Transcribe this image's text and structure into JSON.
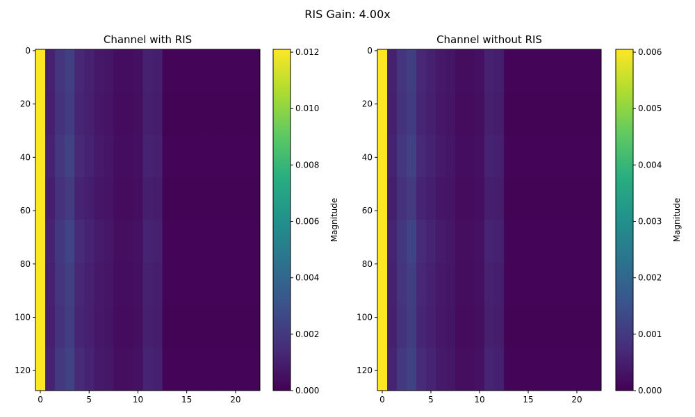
{
  "figure_title": "RIS Gain: 4.00x",
  "chart_data": [
    {
      "type": "heatmap",
      "title": "Channel with RIS",
      "xlabel": "",
      "ylabel": "",
      "x_range": [
        -0.5,
        22.5
      ],
      "y_range": [
        127.5,
        -0.5
      ],
      "x_ticks": [
        0,
        5,
        10,
        15,
        20
      ],
      "y_ticks": [
        0,
        20,
        40,
        60,
        80,
        100,
        120
      ],
      "rows": 128,
      "cols": 23,
      "colorbar": {
        "label": "Magnitude",
        "range": [
          0,
          0.0121
        ],
        "ticks": [
          "0.000",
          "0.002",
          "0.004",
          "0.006",
          "0.008",
          "0.010",
          "0.012"
        ],
        "tick_values": [
          0,
          0.002,
          0.004,
          0.006,
          0.008,
          0.01,
          0.012
        ],
        "colormap": "viridis"
      },
      "column_profile": [
        0.0121,
        0.0011,
        0.0018,
        0.0022,
        0.0013,
        0.0011,
        0.0008,
        0.0007,
        0.0004,
        0.0004,
        0.0005,
        0.0011,
        0.001,
        0.0001,
        0.0001,
        0.0001,
        0.0001,
        0.0001,
        0.0001,
        0.0001,
        0.0001,
        0.0001,
        0.0001
      ],
      "row_block_size": 16,
      "row_block_modulation": [
        1.0,
        0.95,
        1.05,
        0.92,
        1.1,
        1.0,
        0.96,
        1.08
      ]
    },
    {
      "type": "heatmap",
      "title": "Channel without RIS",
      "xlabel": "",
      "ylabel": "",
      "x_range": [
        -0.5,
        22.5
      ],
      "y_range": [
        127.5,
        -0.5
      ],
      "x_ticks": [
        0,
        5,
        10,
        15,
        20
      ],
      "y_ticks": [
        0,
        20,
        40,
        60,
        80,
        100,
        120
      ],
      "rows": 128,
      "cols": 23,
      "colorbar": {
        "label": "Magnitude",
        "range": [
          0,
          0.00605
        ],
        "ticks": [
          "0.000",
          "0.001",
          "0.002",
          "0.003",
          "0.004",
          "0.005",
          "0.006"
        ],
        "tick_values": [
          0,
          0.001,
          0.002,
          0.003,
          0.004,
          0.005,
          0.006
        ],
        "colormap": "viridis"
      },
      "column_profile": [
        0.00605,
        0.00055,
        0.0009,
        0.0011,
        0.00065,
        0.00055,
        0.0004,
        0.00035,
        0.0002,
        0.0002,
        0.00025,
        0.00055,
        0.0005,
        5e-05,
        5e-05,
        5e-05,
        5e-05,
        5e-05,
        5e-05,
        5e-05,
        5e-05,
        5e-05,
        5e-05
      ],
      "row_block_size": 16,
      "row_block_modulation": [
        1.0,
        0.95,
        1.05,
        0.92,
        1.1,
        1.0,
        0.96,
        1.08
      ]
    }
  ]
}
